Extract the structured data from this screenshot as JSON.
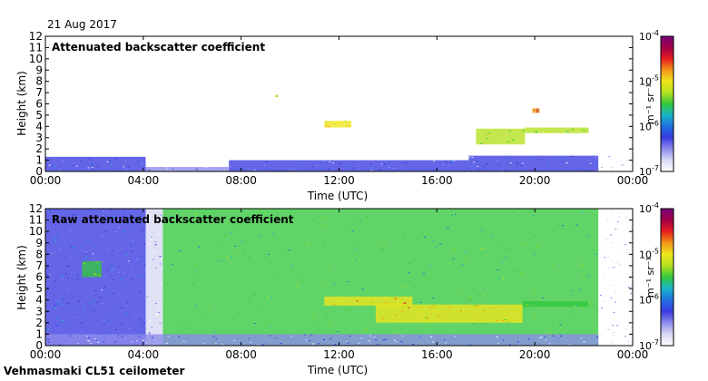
{
  "date_label": "21 Aug 2017",
  "footer_label": "Vehmasmaki CL51 ceilometer",
  "colorbar_unit": "m⁻¹ sr⁻¹",
  "colorbar_ticks": [
    {
      "exp": -4,
      "label_base": "10",
      "label_exp": "-4"
    },
    {
      "exp": -5,
      "label_base": "10",
      "label_exp": "-5"
    },
    {
      "exp": -6,
      "label_base": "10",
      "label_exp": "-6"
    },
    {
      "exp": -7,
      "label_base": "10",
      "label_exp": "-7"
    }
  ],
  "colormap": [
    "#ffffff",
    "#d8d8f4",
    "#8c8cec",
    "#3a3ae0",
    "#1f6fe0",
    "#19b4c8",
    "#33c83c",
    "#b4e01e",
    "#f0e61e",
    "#f09619",
    "#e61e1e",
    "#a00046",
    "#780078"
  ],
  "chart_data": [
    {
      "type": "heatmap",
      "title": "Attenuated backscatter coefficient",
      "xlabel": "Time (UTC)",
      "ylabel": "Height (km)",
      "xlim": [
        0,
        24
      ],
      "ylim": [
        0,
        12
      ],
      "xticks": [
        0,
        4,
        8,
        12,
        16,
        20,
        24
      ],
      "xtick_labels": [
        "00:00",
        "04:00",
        "08:00",
        "12:00",
        "16:00",
        "20:00",
        "00:00"
      ],
      "yticks": [
        0,
        1,
        2,
        3,
        4,
        5,
        6,
        7,
        8,
        9,
        10,
        11,
        12
      ],
      "ytick_labels": [
        "0",
        "1",
        "2",
        "3",
        "4",
        "5",
        "6",
        "7",
        "8",
        "9",
        "10",
        "11",
        "12"
      ],
      "colorbar_range_log10": [
        -7,
        -4
      ],
      "features": [
        {
          "name": "boundary-layer",
          "t_start": 0,
          "t_end": 4.1,
          "h_bottom": 0,
          "h_top": 1.3,
          "log10_beta": -6.3
        },
        {
          "name": "boundary-layer",
          "t_start": 4.1,
          "t_end": 7.5,
          "h_bottom": 0,
          "h_top": 0.4,
          "log10_beta": -6.4
        },
        {
          "name": "boundary-layer",
          "t_start": 7.5,
          "t_end": 17.3,
          "h_bottom": 0,
          "h_top": 1.0,
          "log10_beta": -6.3
        },
        {
          "name": "boundary-layer",
          "t_start": 17.3,
          "t_end": 22.6,
          "h_bottom": 0,
          "h_top": 1.4,
          "log10_beta": -6.3
        },
        {
          "name": "noise",
          "t_start": 22.6,
          "t_end": 24,
          "h_bottom": 0,
          "h_top": 1.6,
          "log10_beta": -6.9
        },
        {
          "name": "cloud-layer",
          "t_start": 11.4,
          "t_end": 12.5,
          "h_bottom": 3.9,
          "h_top": 4.5,
          "log10_beta": -4.9
        },
        {
          "name": "cloud-layer",
          "t_start": 17.6,
          "t_end": 19.6,
          "h_bottom": 2.4,
          "h_top": 3.8,
          "log10_beta": -5.2
        },
        {
          "name": "cloud-layer",
          "t_start": 19.6,
          "t_end": 22.2,
          "h_bottom": 3.4,
          "h_top": 3.9,
          "log10_beta": -5.3
        },
        {
          "name": "cloud-layer",
          "t_start": 19.9,
          "t_end": 20.2,
          "h_bottom": 5.2,
          "h_top": 5.6,
          "log10_beta": -4.8
        },
        {
          "name": "cloud-layer",
          "t_start": 9.4,
          "t_end": 9.5,
          "h_bottom": 6.6,
          "h_top": 6.8,
          "log10_beta": -5.0
        }
      ]
    },
    {
      "type": "heatmap",
      "title": "Raw attenuated backscatter coefficient",
      "xlabel": "Time (UTC)",
      "ylabel": "Height (km)",
      "xlim": [
        0,
        24
      ],
      "ylim": [
        0,
        12
      ],
      "xticks": [
        0,
        4,
        8,
        12,
        16,
        20,
        24
      ],
      "xtick_labels": [
        "00:00",
        "04:00",
        "08:00",
        "12:00",
        "16:00",
        "20:00",
        "00:00"
      ],
      "yticks": [
        0,
        1,
        2,
        3,
        4,
        5,
        6,
        7,
        8,
        9,
        10,
        11,
        12
      ],
      "ytick_labels": [
        "0",
        "1",
        "2",
        "3",
        "4",
        "5",
        "6",
        "7",
        "8",
        "9",
        "10",
        "11",
        "12"
      ],
      "colorbar_range_log10": [
        -7,
        -4
      ],
      "features": [
        {
          "name": "background",
          "t_start": 0,
          "t_end": 4.1,
          "h_bottom": 0,
          "h_top": 12,
          "log10_beta": -6.2
        },
        {
          "name": "noise",
          "t_start": 4.1,
          "t_end": 4.8,
          "h_bottom": 0,
          "h_top": 12,
          "log10_beta": -6.8
        },
        {
          "name": "background",
          "t_start": 4.8,
          "t_end": 22.6,
          "h_bottom": 0,
          "h_top": 12,
          "log10_beta": -5.6
        },
        {
          "name": "noise",
          "t_start": 22.6,
          "t_end": 24,
          "h_bottom": 0,
          "h_top": 12,
          "log10_beta": -6.9
        },
        {
          "name": "boundary-layer",
          "t_start": 0,
          "t_end": 22.6,
          "h_bottom": 0,
          "h_top": 1.0,
          "log10_beta": -6.5
        },
        {
          "name": "cloud-layer",
          "t_start": 11.4,
          "t_end": 15.0,
          "h_bottom": 3.5,
          "h_top": 4.3,
          "log10_beta": -4.9
        },
        {
          "name": "cloud-layer",
          "t_start": 13.5,
          "t_end": 19.5,
          "h_bottom": 2.0,
          "h_top": 3.6,
          "log10_beta": -5.0
        },
        {
          "name": "cloud-layer",
          "t_start": 19.5,
          "t_end": 22.2,
          "h_bottom": 3.4,
          "h_top": 3.9,
          "log10_beta": -5.4
        },
        {
          "name": "aerosol-patch",
          "t_start": 1.5,
          "t_end": 2.3,
          "h_bottom": 6.0,
          "h_top": 7.4,
          "log10_beta": -5.4
        }
      ]
    }
  ]
}
